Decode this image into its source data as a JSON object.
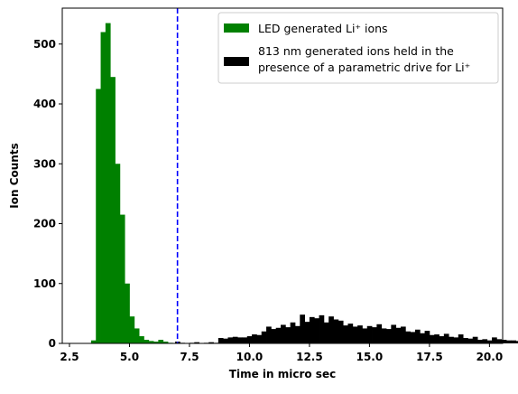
{
  "chart_data": {
    "type": "bar",
    "title": "",
    "xlabel": "Time in micro sec",
    "ylabel": "Ion Counts",
    "xlim": [
      2.2,
      20.55
    ],
    "ylim": [
      0,
      560
    ],
    "xticks": [
      2.5,
      5.0,
      7.5,
      10.0,
      12.5,
      15.0,
      17.5,
      20.0
    ],
    "xtick_labels": [
      "2.5",
      "5.0",
      "7.5",
      "10.0",
      "12.5",
      "15.0",
      "17.5",
      "20.0"
    ],
    "yticks": [
      0,
      100,
      200,
      300,
      400,
      500
    ],
    "ytick_labels": [
      "0",
      "100",
      "200",
      "300",
      "400",
      "500"
    ],
    "grid": false,
    "legend_position": "top-right",
    "vline": {
      "x": 7.0,
      "color": "#0000ff",
      "style": "dashed"
    },
    "series": [
      {
        "name": "LED generated Li⁺ ions",
        "legend_lines": [
          "LED generated Li⁺ ions"
        ],
        "color": "#008000",
        "bin_width": 0.2,
        "bin_starts": [
          3.4,
          3.6,
          3.8,
          4.0,
          4.2,
          4.4,
          4.6,
          4.8,
          5.0,
          5.2,
          5.4,
          5.6,
          5.8,
          6.0,
          6.2,
          6.4,
          6.6
        ],
        "values": [
          5,
          425,
          520,
          535,
          445,
          300,
          215,
          100,
          45,
          25,
          12,
          6,
          4,
          3,
          6,
          3,
          1
        ]
      },
      {
        "name": "813 nm generated ions held in the presence of a parametric drive for Li⁺",
        "legend_lines": [
          "813 nm generated ions held in the",
          "presence of a parametric drive for Li⁺"
        ],
        "color": "#000000",
        "bin_start": 6.9,
        "bin_width": 0.2,
        "values": [
          3,
          1,
          0,
          1,
          2,
          0,
          1,
          2,
          1,
          9,
          8,
          10,
          11,
          10,
          10,
          12,
          15,
          14,
          20,
          28,
          24,
          26,
          31,
          27,
          35,
          29,
          48,
          36,
          44,
          42,
          47,
          35,
          45,
          40,
          38,
          30,
          33,
          28,
          30,
          25,
          29,
          27,
          32,
          25,
          24,
          31,
          26,
          28,
          20,
          19,
          23,
          17,
          21,
          14,
          15,
          12,
          16,
          11,
          10,
          15,
          9,
          8,
          11,
          6,
          7,
          5,
          10,
          7,
          6,
          5,
          5,
          4
        ]
      }
    ]
  }
}
